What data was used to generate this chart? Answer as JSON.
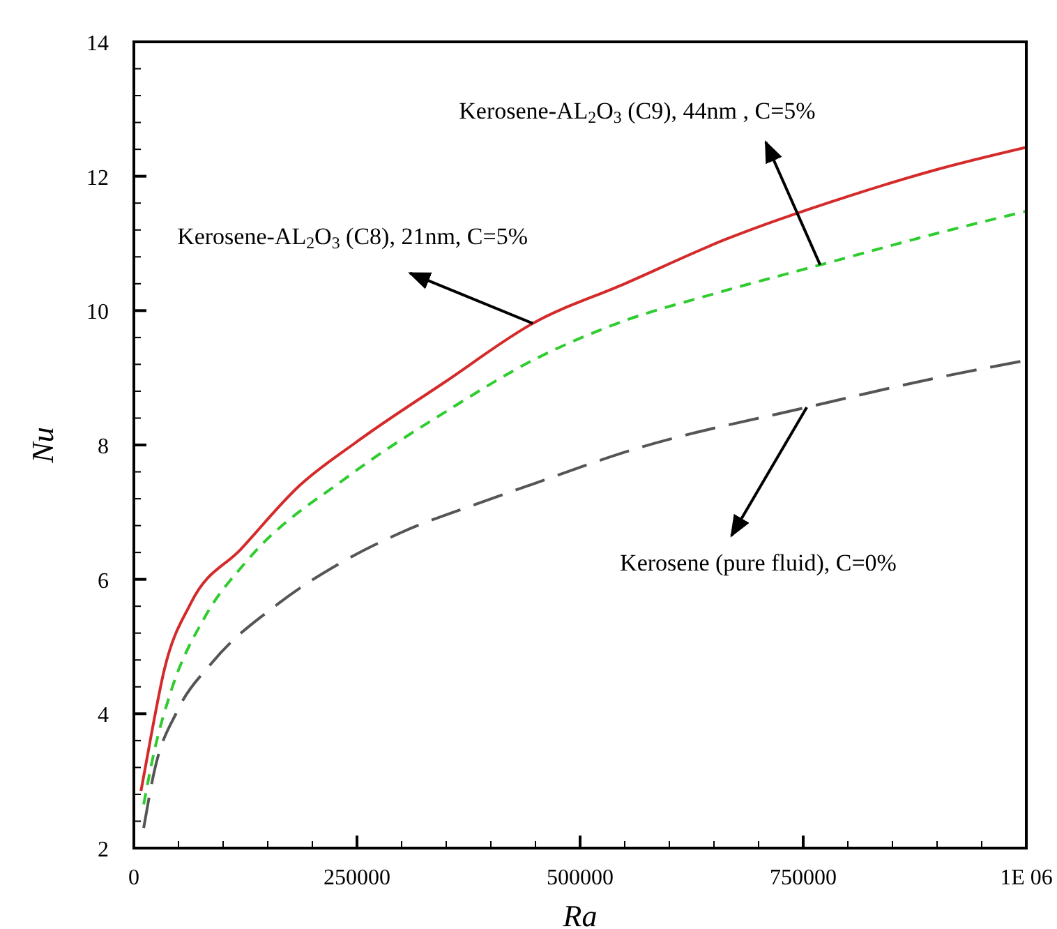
{
  "chart_data": {
    "type": "line",
    "xlabel": "Ra",
    "ylabel": "Nu",
    "xlim": [
      0,
      1000000
    ],
    "ylim": [
      2,
      14
    ],
    "xticks": [
      0,
      {
        "value": 50000,
        "label": null
      },
      {
        "value": 100000,
        "label": null
      },
      {
        "value": 150000,
        "label": null
      },
      {
        "value": 200000,
        "label": null
      },
      250000,
      {
        "value": 300000,
        "label": null
      },
      {
        "value": 350000,
        "label": null
      },
      {
        "value": 400000,
        "label": null
      },
      {
        "value": 450000,
        "label": null
      },
      500000,
      {
        "value": 550000,
        "label": null
      },
      {
        "value": 600000,
        "label": null
      },
      {
        "value": 650000,
        "label": null
      },
      {
        "value": 700000,
        "label": null
      },
      750000,
      {
        "value": 800000,
        "label": null
      },
      {
        "value": 850000,
        "label": null
      },
      {
        "value": 900000,
        "label": null
      },
      {
        "value": 950000,
        "label": null
      },
      {
        "value": 1000000,
        "label": "1E 06"
      }
    ],
    "yticks": [
      2,
      {
        "value": 2.4,
        "label": null
      },
      {
        "value": 2.8,
        "label": null
      },
      {
        "value": 3.2,
        "label": null
      },
      {
        "value": 3.6,
        "label": null
      },
      4,
      {
        "value": 4.4,
        "label": null
      },
      {
        "value": 4.8,
        "label": null
      },
      {
        "value": 5.2,
        "label": null
      },
      {
        "value": 5.6,
        "label": null
      },
      6,
      {
        "value": 6.4,
        "label": null
      },
      {
        "value": 6.8,
        "label": null
      },
      {
        "value": 7.2,
        "label": null
      },
      {
        "value": 7.6,
        "label": null
      },
      8,
      {
        "value": 8.4,
        "label": null
      },
      {
        "value": 8.8,
        "label": null
      },
      {
        "value": 9.2,
        "label": null
      },
      {
        "value": 9.6,
        "label": null
      },
      10,
      {
        "value": 10.4,
        "label": null
      },
      {
        "value": 10.8,
        "label": null
      },
      {
        "value": 11.2,
        "label": null
      },
      {
        "value": 11.6,
        "label": null
      },
      12,
      {
        "value": 12.4,
        "label": null
      },
      {
        "value": 12.8,
        "label": null
      },
      {
        "value": 13.2,
        "label": null
      },
      {
        "value": 13.6,
        "label": null
      },
      14
    ],
    "grid": false,
    "series": [
      {
        "color": "#d42a2a",
        "line_style": "solid",
        "x": [
          8000,
          19000,
          34000,
          64000,
          120000,
          186000,
          250000,
          350000,
          447000,
          550000,
          663000,
          800000,
          900000,
          1000000
        ],
        "values": [
          2.85,
          3.65,
          4.65,
          5.65,
          6.45,
          7.4,
          8.05,
          8.95,
          9.81,
          10.4,
          11.06,
          11.7,
          12.1,
          12.43
        ]
      },
      {
        "color": "#2ecc2e",
        "line_style": "dashed",
        "x": [
          11000,
          23000,
          42000,
          80000,
          125000,
          242000,
          350000,
          447000,
          550000,
          650000,
          769000,
          900000,
          1000000
        ],
        "values": [
          2.65,
          3.45,
          4.35,
          5.45,
          6.25,
          7.55,
          8.5,
          9.26,
          9.85,
          10.25,
          10.68,
          11.15,
          11.48
        ]
      },
      {
        "color": "#555555",
        "line_style": "dashed",
        "x": [
          11000,
          23000,
          49000,
          87000,
          163000,
          239000,
          300000,
          390000,
          443000,
          564000,
          754000,
          900000,
          1000000
        ],
        "values": [
          2.3,
          3.15,
          4.05,
          4.75,
          5.65,
          6.3,
          6.7,
          7.15,
          7.4,
          7.95,
          8.56,
          9.0,
          9.26
        ]
      }
    ],
    "annotations": [
      {
        "text": "Kerosene-AL$_{2}$O$_{3}$ (C9), 44nm , C=5%",
        "x": 769000,
        "y": 10.68
      },
      {
        "text": "Kerosene-AL$_{2}$O$_{3}$ (C8), 21nm, C=5%",
        "x": 447000,
        "y": 9.81
      },
      {
        "text": "Kerosene (pure fluid), C=0%",
        "x": 754000,
        "y": 8.56
      }
    ]
  }
}
